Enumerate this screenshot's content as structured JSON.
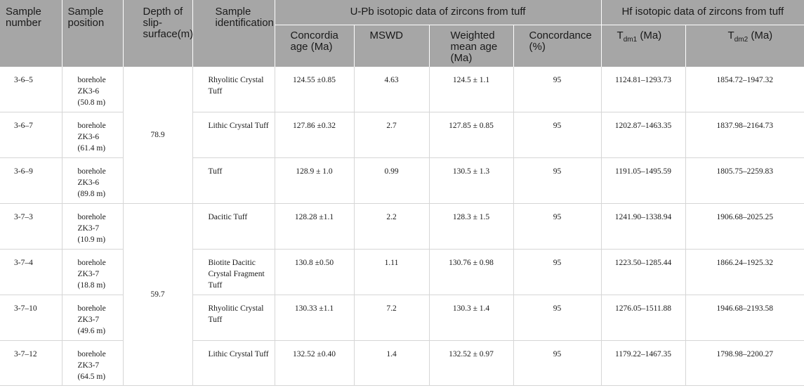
{
  "header": {
    "sample_number": "Sample number",
    "sample_position": "Sample position",
    "depth": "Depth of slip-surface(m)",
    "identification": "Sample identification",
    "upb_group": "U-Pb isotopic data of zircons from tuff",
    "hf_group": "Hf isotopic data of zircons from tuff",
    "concordia": "Concordia age (Ma)",
    "mswd": "MSWD",
    "weighted": "Weighted mean age (Ma)",
    "concordance": "Concordance (%)",
    "tdm1_base": "T",
    "tdm1_sub": "dm1",
    "tdm1_unit": " (Ma)",
    "tdm2_base": "T",
    "tdm2_sub": "dm2",
    "tdm2_unit": " (Ma)"
  },
  "depths": [
    "78.9",
    "59.7"
  ],
  "rows": [
    {
      "num": "3-6–5",
      "pos1": "borehole",
      "pos2": "ZK3-6",
      "pos3": "(50.8 m)",
      "ident": "Rhyolitic Crystal Tuff",
      "concordia": "124.55 ±0.85",
      "mswd": "4.63",
      "weighted": "124.5 ± 1.1",
      "concordance": "95",
      "tdm1": "1124.81–1293.73",
      "tdm2": "1854.72–1947.32"
    },
    {
      "num": "3-6–7",
      "pos1": "borehole",
      "pos2": "ZK3-6",
      "pos3": "(61.4 m)",
      "ident": "Lithic Crystal Tuff",
      "concordia": "127.86 ±0.32",
      "mswd": "2.7",
      "weighted": "127.85 ± 0.85",
      "concordance": "95",
      "tdm1": "1202.87–1463.35",
      "tdm2": "1837.98–2164.73"
    },
    {
      "num": "3-6–9",
      "pos1": "borehole",
      "pos2": "ZK3-6",
      "pos3": "(89.8 m)",
      "ident": "Tuff",
      "concordia": "128.9 ± 1.0",
      "mswd": "0.99",
      "weighted": "130.5 ± 1.3",
      "concordance": "95",
      "tdm1": "1191.05–1495.59",
      "tdm2": "1805.75–2259.83"
    },
    {
      "num": "3-7–3",
      "pos1": "borehole",
      "pos2": "ZK3-7",
      "pos3": "(10.9 m)",
      "ident": "Dacitic Tuff",
      "concordia": "128.28 ±1.1",
      "mswd": "2.2",
      "weighted": "128.3 ± 1.5",
      "concordance": "95",
      "tdm1": "1241.90–1338.94",
      "tdm2": "1906.68–2025.25"
    },
    {
      "num": "3-7–4",
      "pos1": "borehole",
      "pos2": "ZK3-7",
      "pos3": "(18.8 m)",
      "ident": "Biotite Dacitic Crystal Fragment Tuff",
      "concordia": "130.8 ±0.50",
      "mswd": "1.11",
      "weighted": "130.76 ± 0.98",
      "concordance": "95",
      "tdm1": "1223.50–1285.44",
      "tdm2": "1866.24–1925.32"
    },
    {
      "num": "3-7–10",
      "pos1": "borehole",
      "pos2": "ZK3-7",
      "pos3": "(49.6 m)",
      "ident": "Rhyolitic Crystal Tuff",
      "concordia": "130.33 ±1.1",
      "mswd": "7.2",
      "weighted": "130.3 ± 1.4",
      "concordance": "95",
      "tdm1": "1276.05–1511.88",
      "tdm2": "1946.68–2193.58"
    },
    {
      "num": "3-7–12",
      "pos1": "borehole",
      "pos2": "ZK3-7",
      "pos3": "(64.5 m)",
      "ident": "Lithic Crystal Tuff",
      "concordia": "132.52 ±0.40",
      "mswd": "1.4",
      "weighted": "132.52 ± 0.97",
      "concordance": "95",
      "tdm1": "1179.22–1467.35",
      "tdm2": "1798.98–2200.27"
    }
  ]
}
